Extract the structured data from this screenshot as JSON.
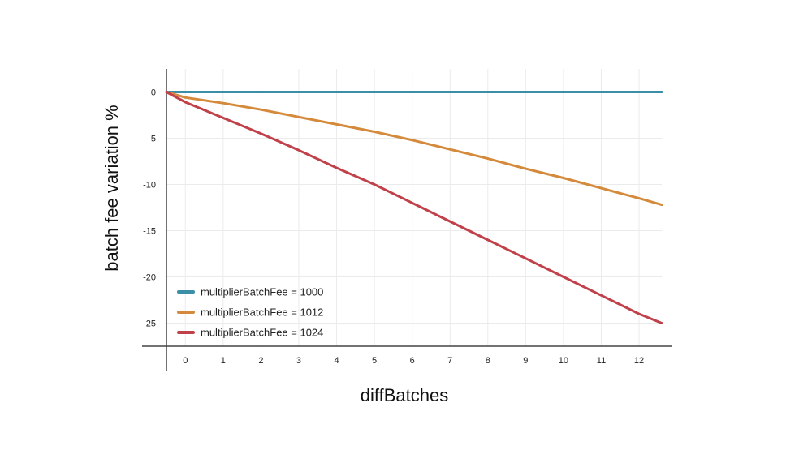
{
  "chart_data": {
    "type": "line",
    "title": "",
    "xlabel": "diffBatches",
    "ylabel": "batch fee variation %",
    "xlim": [
      -0.5,
      12.6
    ],
    "ylim": [
      -27.5,
      2.5
    ],
    "x_ticks": [
      0,
      1,
      2,
      3,
      4,
      5,
      6,
      7,
      8,
      9,
      10,
      11,
      12
    ],
    "y_ticks": [
      0,
      -5,
      -10,
      -15,
      -20,
      -25
    ],
    "grid": true,
    "legend_position": "bottom-left",
    "series": [
      {
        "name": "multiplierBatchFee = 1000",
        "color": "#3a8fa6",
        "x": [
          -0.5,
          0,
          1,
          2,
          3,
          4,
          5,
          6,
          7,
          8,
          9,
          10,
          11,
          12,
          12.6
        ],
        "y": [
          0,
          0,
          0,
          0,
          0,
          0,
          0,
          0,
          0,
          0,
          0,
          0,
          0,
          0,
          0
        ]
      },
      {
        "name": "multiplierBatchFee = 1012",
        "color": "#d4893b",
        "x": [
          -0.5,
          0,
          1,
          2,
          3,
          4,
          5,
          6,
          7,
          8,
          9,
          10,
          11,
          12,
          12.6
        ],
        "y": [
          0,
          -0.6,
          -1.2,
          -1.9,
          -2.7,
          -3.5,
          -4.3,
          -5.2,
          -6.2,
          -7.2,
          -8.3,
          -9.3,
          -10.4,
          -11.5,
          -12.2
        ]
      },
      {
        "name": "multiplierBatchFee = 1024",
        "color": "#c0414a",
        "x": [
          -0.5,
          0,
          1,
          2,
          3,
          4,
          5,
          6,
          7,
          8,
          9,
          10,
          11,
          12,
          12.6
        ],
        "y": [
          0,
          -1.1,
          -2.8,
          -4.5,
          -6.3,
          -8.2,
          -10.0,
          -12.0,
          -14.0,
          -16.0,
          -18.0,
          -20.0,
          -22.0,
          -24.0,
          -25.0
        ]
      }
    ]
  }
}
